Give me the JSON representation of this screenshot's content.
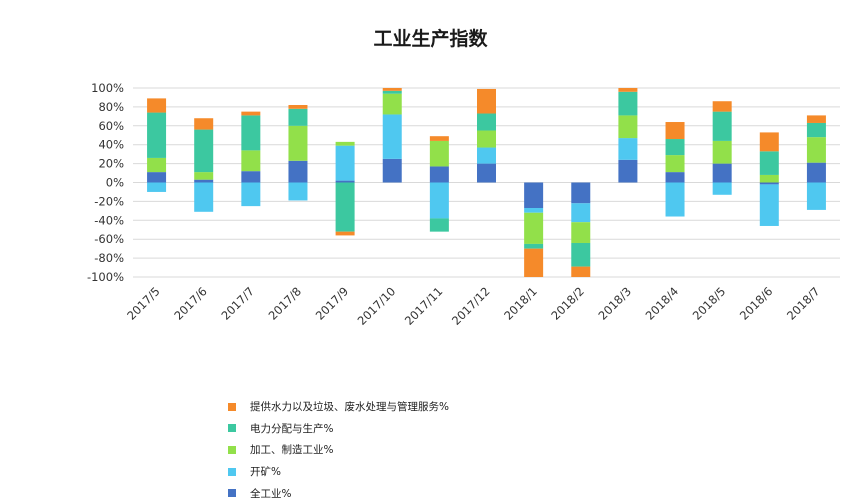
{
  "chart_data": {
    "type": "bar",
    "stacked": true,
    "title": "工业生产指数",
    "categories": [
      "2017/5",
      "2017/6",
      "2017/7",
      "2017/8",
      "2017/9",
      "2017/10",
      "2017/11",
      "2017/12",
      "2018/1",
      "2018/2",
      "2018/3",
      "2018/4",
      "2018/5",
      "2018/6",
      "2018/7"
    ],
    "y_ticks": [
      "100%",
      "80%",
      "60%",
      "40%",
      "20%",
      "0%",
      "-20%",
      "-40%",
      "-60%",
      "-80%",
      "-100%"
    ],
    "ylim": [
      -100,
      100
    ],
    "grid": true,
    "legend_position": "bottom-left",
    "series": [
      {
        "name": "全工业%",
        "color": "#4472C4",
        "values": [
          11,
          3,
          12,
          23,
          2,
          25,
          17,
          20,
          -27,
          -22,
          24,
          11,
          20,
          -2,
          21
        ]
      },
      {
        "name": "开矿%",
        "color": "#4FC8F0",
        "values": [
          -10,
          -31,
          -25,
          -19,
          37,
          47,
          -38,
          17,
          -5,
          -20,
          23,
          -36,
          -13,
          -44,
          -29
        ]
      },
      {
        "name": "加工、制造工业%",
        "color": "#92E04A",
        "values": [
          15,
          8,
          22,
          37,
          4,
          22,
          27,
          18,
          -33,
          -22,
          24,
          18,
          24,
          8,
          27
        ]
      },
      {
        "name": "电力分配与生产%",
        "color": "#3CC8A0",
        "values": [
          48,
          45,
          37,
          18,
          -52,
          3,
          -14,
          18,
          -5,
          -25,
          25,
          17,
          31,
          25,
          15
        ]
      },
      {
        "name": "提供水力以及垃圾、废水处理与管理服务%",
        "color": "#F58A2A",
        "values": [
          15,
          12,
          4,
          4,
          -4,
          3,
          5,
          26,
          -30,
          -11,
          4,
          18,
          11,
          20,
          8
        ]
      }
    ]
  }
}
